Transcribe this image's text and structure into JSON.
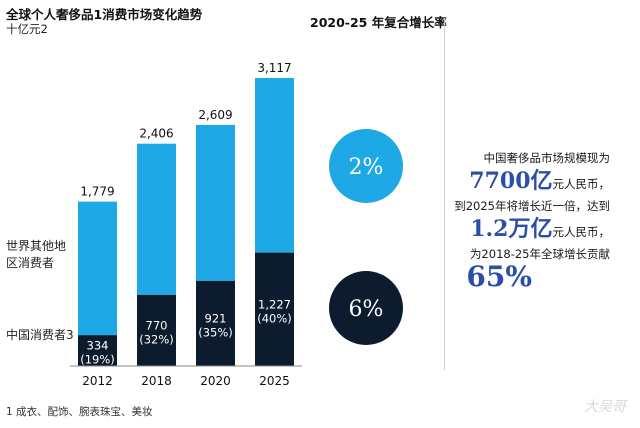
{
  "header": {
    "title": "全球个人奢侈品1消费市场变化趋势",
    "subtitle": "十亿元2",
    "cagr_title": "2020-25 年复合增长率"
  },
  "legend": {
    "rest_of_world": "世界其他地区消费者",
    "china": "中国消费者3"
  },
  "cagr": {
    "rest_of_world": "2%",
    "china": "6%"
  },
  "right_text": {
    "line1": "中国奢侈品市场规模现为",
    "big1": "7700亿",
    "unit1": "元人民币，",
    "line2": "到2025年将增长近一倍，达到",
    "big2": "1.2万亿",
    "unit2": "元人民币，",
    "line3": "为2018-25年全球增长贡献",
    "big3": "65%"
  },
  "footnote": "1 成衣、配饰、腕表珠宝、美妆",
  "watermark": "大吴哥",
  "colors": {
    "rest_of_world": "#1ea9e6",
    "china": "#0d1b2e",
    "cagr_top_circle": "#1ea9e6",
    "cagr_bottom_circle": "#0d1b2e",
    "highlight_text": "#2b4ea8"
  },
  "chart_data": {
    "type": "bar",
    "stacked": true,
    "categories": [
      "2012",
      "2018",
      "2020",
      "2025"
    ],
    "series": [
      {
        "name": "中国消费者3",
        "values": [
          334,
          770,
          921,
          1227
        ],
        "labels": [
          "334",
          "770",
          "921",
          "1,227"
        ],
        "shares": [
          "(19%)",
          "(32%)",
          "(35%)",
          "(40%)"
        ]
      },
      {
        "name": "世界其他地区消费者",
        "values": [
          1445,
          1636,
          1688,
          1890
        ]
      }
    ],
    "totals": [
      1779,
      2406,
      2609,
      3117
    ],
    "total_labels": [
      "1,779",
      "2,406",
      "2,609",
      "3,117"
    ],
    "ylim": [
      0,
      3117
    ]
  }
}
